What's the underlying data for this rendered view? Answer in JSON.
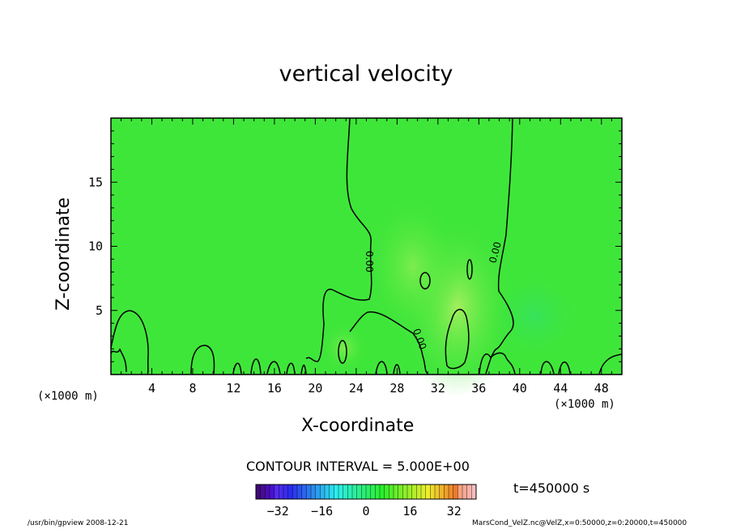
{
  "chart_data": {
    "type": "contour",
    "title": "vertical velocity",
    "xlabel": "X-coordinate",
    "ylabel": "Z-coordinate",
    "x_unit": "(×1000 m)",
    "xlim": [
      0,
      50
    ],
    "ylim": [
      0,
      20
    ],
    "x_ticks": [
      "4",
      "8",
      "12",
      "16",
      "20",
      "24",
      "28",
      "32",
      "36",
      "40",
      "44",
      "48"
    ],
    "y_ticks": [
      "5",
      "10",
      "15"
    ],
    "contour_labels": [
      "0.00",
      "0.00",
      "0.00"
    ],
    "contour_interval": "CONTOUR INTERVAL = 5.000E+00",
    "colorbar": {
      "ticks": [
        "−32",
        "−16",
        "0",
        "16",
        "32"
      ],
      "range": [
        -40,
        40
      ],
      "colormap": "rainbow"
    },
    "time": "t=450000 s",
    "footer_left": "/usr/bin/gpview   2008-12-21",
    "footer_right": "MarsCond_VelZ.nc@VelZ,x=0:50000,z=0:20000,t=450000",
    "colors": {
      "field": "#33e633",
      "weak_positive": "#80f04d",
      "strong_positive": "#b3f066",
      "weak_negative": "#2ee06e"
    }
  }
}
